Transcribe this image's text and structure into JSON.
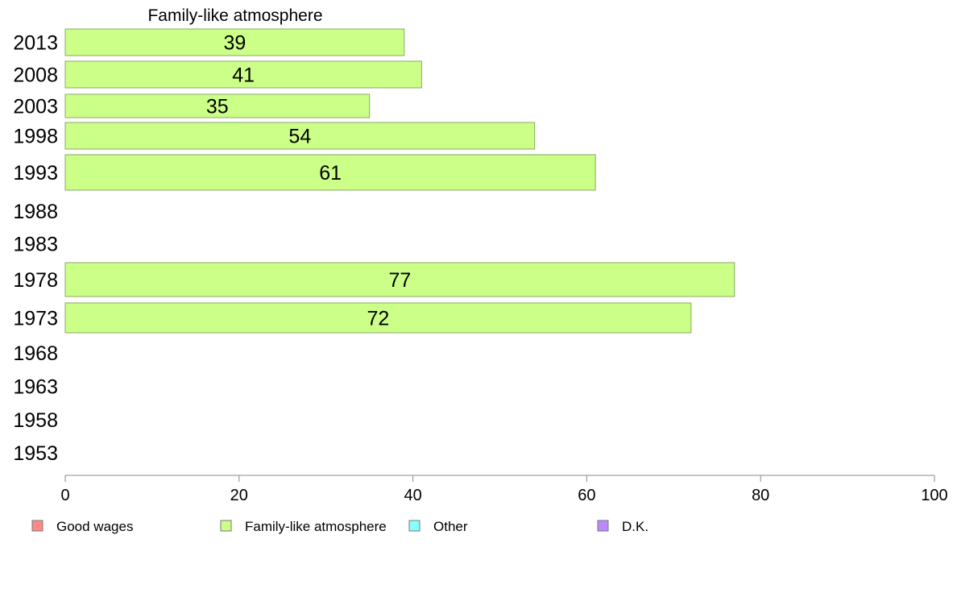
{
  "chart_data": {
    "type": "bar",
    "orientation": "horizontal",
    "series_title": "Family-like atmosphere",
    "categories": [
      "2013",
      "2008",
      "2003",
      "1998",
      "1993",
      "1988",
      "1983",
      "1978",
      "1973",
      "1968",
      "1963",
      "1958",
      "1953"
    ],
    "series": [
      {
        "name": "Family-like atmosphere",
        "color": "#ccff88",
        "values": [
          39,
          41,
          35,
          54,
          61,
          null,
          null,
          77,
          72,
          null,
          null,
          null,
          null
        ]
      }
    ],
    "xlim": [
      0,
      100
    ],
    "xticks": [
      0,
      20,
      40,
      60,
      80,
      100
    ],
    "xlabel": "",
    "ylabel": "",
    "grid": false,
    "legend": {
      "position": "bottom",
      "entries": [
        {
          "label": "Good wages",
          "color": "#ff8888"
        },
        {
          "label": "Family-like atmosphere",
          "color": "#ccff88"
        },
        {
          "label": "Other",
          "color": "#88ffff"
        },
        {
          "label": "D.K.",
          "color": "#bb88ff"
        }
      ]
    },
    "bar_border_color": "#88aa66",
    "axis_color": "#888888"
  }
}
